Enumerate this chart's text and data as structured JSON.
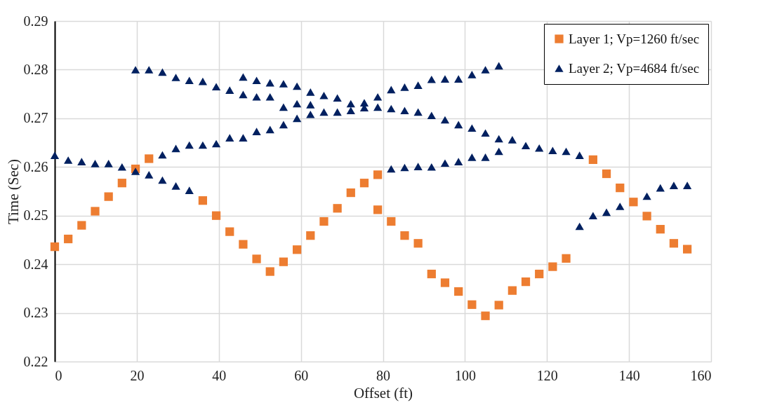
{
  "chart_data": {
    "type": "scatter",
    "xlabel": "Offset (ft)",
    "ylabel": "Time (Sec)",
    "xlim": [
      0,
      160
    ],
    "xticks": [
      0,
      20,
      40,
      60,
      80,
      100,
      120,
      140,
      160
    ],
    "ylim": [
      0.22,
      0.29
    ],
    "yticks": [
      0.22,
      0.23,
      0.24,
      0.25,
      0.26,
      0.27,
      0.28,
      0.29
    ],
    "grid": true,
    "legend": "top right",
    "series": [
      {
        "name": "Layer 1; Vp=1260 ft/sec",
        "color": "#ed7d31",
        "marker": "square",
        "x": [
          0,
          3.28,
          6.56,
          9.84,
          13.12,
          16.4,
          19.69,
          22.97,
          36.09,
          39.37,
          42.65,
          45.93,
          49.21,
          52.49,
          55.77,
          59.06,
          62.34,
          65.62,
          68.9,
          72.18,
          75.46,
          78.74,
          78.74,
          82.02,
          85.3,
          88.58,
          91.86,
          95.14,
          98.43,
          101.71,
          104.99,
          108.27,
          111.55,
          114.83,
          118.11,
          121.39,
          124.67,
          131.23,
          134.51,
          137.8,
          141.08,
          144.36,
          147.64,
          150.92,
          154.2
        ],
        "values": [
          0.2436,
          0.2452,
          0.248,
          0.2509,
          0.2539,
          0.2567,
          0.2596,
          0.2617,
          0.2531,
          0.25,
          0.2467,
          0.2441,
          0.2411,
          0.2385,
          0.2405,
          0.243,
          0.2459,
          0.2488,
          0.2515,
          0.2547,
          0.2567,
          0.2584,
          0.2512,
          0.2488,
          0.2459,
          0.2443,
          0.238,
          0.2362,
          0.2344,
          0.2317,
          0.2294,
          0.2316,
          0.2346,
          0.2364,
          0.238,
          0.2395,
          0.2412,
          0.2615,
          0.2586,
          0.2557,
          0.2528,
          0.2499,
          0.2472,
          0.2443,
          0.2431
        ]
      },
      {
        "name": "Layer 2; Vp=4684 ft/sec",
        "color": "#002060",
        "marker": "triangle",
        "x": [
          0,
          3.28,
          6.56,
          9.84,
          13.12,
          16.4,
          19.69,
          22.97,
          26.25,
          29.53,
          32.81,
          26.25,
          29.53,
          32.81,
          36.09,
          39.37,
          42.65,
          45.93,
          49.21,
          52.49,
          55.77,
          59.06,
          62.34,
          65.62,
          68.9,
          72.18,
          75.46,
          78.74,
          82.02,
          85.3,
          88.58,
          91.86,
          95.14,
          98.43,
          101.71,
          104.99,
          108.27,
          111.55,
          114.83,
          118.11,
          121.39,
          124.67,
          127.95,
          19.69,
          22.97,
          26.25,
          29.53,
          32.81,
          36.09,
          39.37,
          42.65,
          45.93,
          49.21,
          52.49,
          55.77,
          59.06,
          62.34,
          72.18,
          75.46,
          45.93,
          49.21,
          52.49,
          55.77,
          59.06,
          62.34,
          65.62,
          68.9,
          78.74,
          82.02,
          85.3,
          88.58,
          91.86,
          95.14,
          98.43,
          101.71,
          104.99,
          108.27,
          82.02,
          85.3,
          88.58,
          91.86,
          95.14,
          98.43,
          101.71,
          104.99,
          108.27,
          127.95,
          131.23,
          134.51,
          137.8,
          144.36,
          147.64,
          150.92,
          154.2
        ],
        "values": [
          0.2624,
          0.2614,
          0.2611,
          0.2607,
          0.2607,
          0.26,
          0.2591,
          0.2584,
          0.2573,
          0.2561,
          0.2552,
          0.2625,
          0.2638,
          0.2645,
          0.2645,
          0.2648,
          0.266,
          0.266,
          0.2673,
          0.2677,
          0.2687,
          0.27,
          0.2708,
          0.2713,
          0.2713,
          0.2716,
          0.2722,
          0.2723,
          0.272,
          0.2716,
          0.2713,
          0.2706,
          0.2697,
          0.2687,
          0.268,
          0.267,
          0.2658,
          0.2656,
          0.2644,
          0.2639,
          0.2634,
          0.2632,
          0.2624,
          0.28,
          0.28,
          0.2795,
          0.2784,
          0.2778,
          0.2776,
          0.2765,
          0.2758,
          0.2749,
          0.2744,
          0.2744,
          0.2723,
          0.273,
          0.2728,
          0.273,
          0.2732,
          0.2785,
          0.2778,
          0.2773,
          0.2771,
          0.2766,
          0.2754,
          0.2747,
          0.2742,
          0.2744,
          0.2759,
          0.2764,
          0.2768,
          0.278,
          0.2781,
          0.2781,
          0.279,
          0.28,
          0.2808,
          0.2596,
          0.2599,
          0.2601,
          0.26,
          0.2608,
          0.2611,
          0.262,
          0.262,
          0.2632,
          0.2478,
          0.25,
          0.2507,
          0.2519,
          0.254,
          0.2557,
          0.2562,
          0.2562
        ]
      }
    ]
  }
}
